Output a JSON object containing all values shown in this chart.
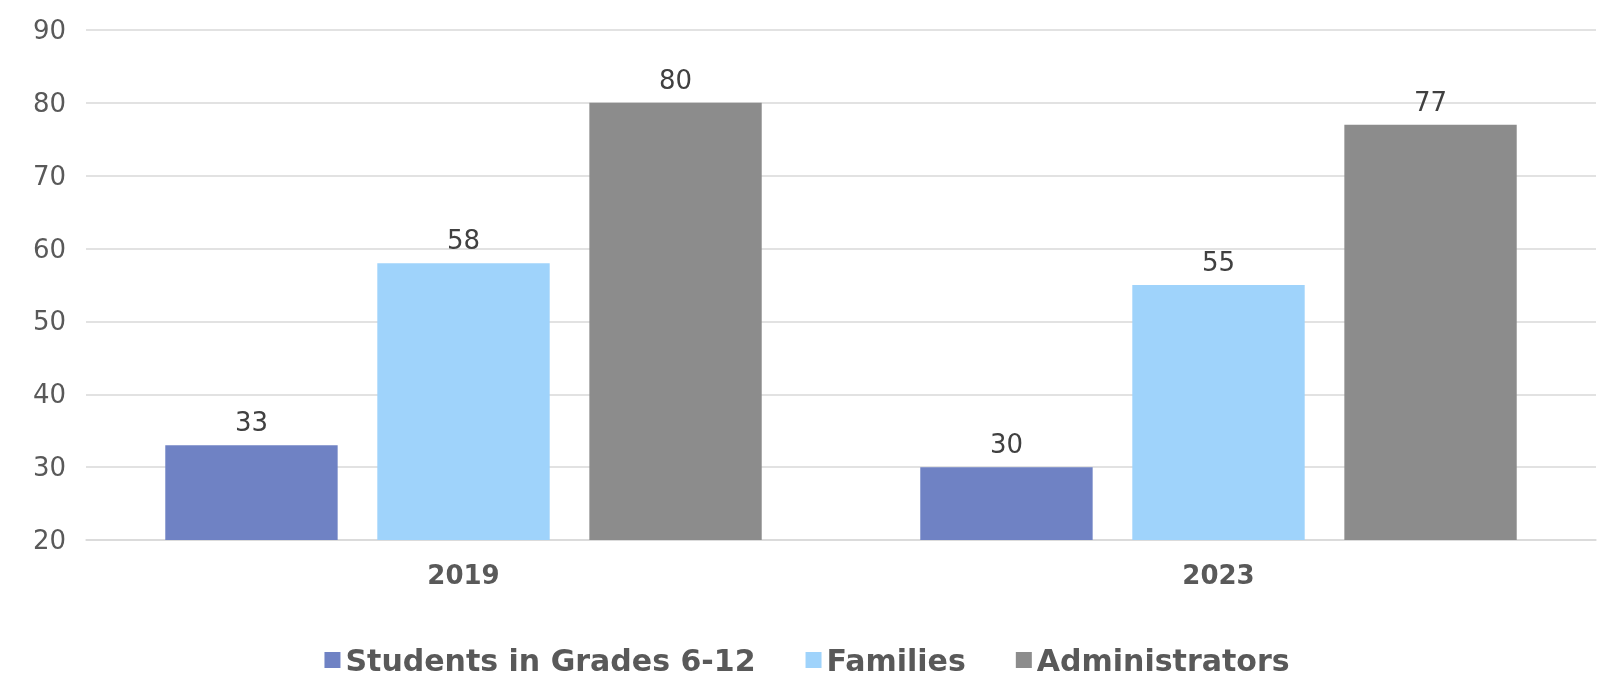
{
  "chart_data": {
    "type": "bar",
    "categories": [
      "2019",
      "2023"
    ],
    "series": [
      {
        "name": "Students in Grades 6-12",
        "color": "#6f82c4",
        "values": [
          33,
          30
        ]
      },
      {
        "name": "Families",
        "color": "#9fd3fb",
        "values": [
          58,
          55
        ]
      },
      {
        "name": "Administrators",
        "color": "#8c8c8c",
        "values": [
          80,
          77
        ]
      }
    ],
    "ylim": [
      20,
      90
    ],
    "yticks": [
      20,
      30,
      40,
      50,
      60,
      70,
      80,
      90
    ],
    "grid": "y",
    "legend": "bottom",
    "data_labels": true
  }
}
